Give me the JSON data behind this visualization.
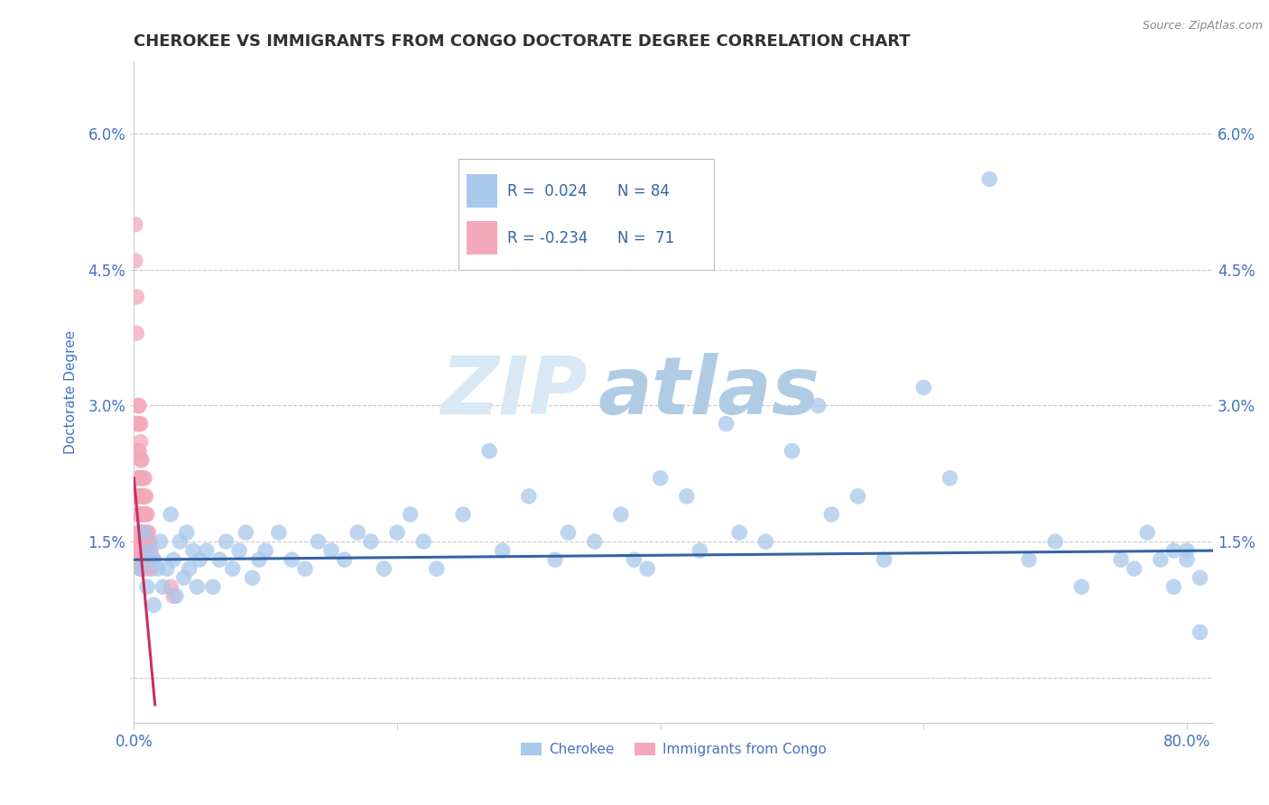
{
  "title": "CHEROKEE VS IMMIGRANTS FROM CONGO DOCTORATE DEGREE CORRELATION CHART",
  "source": "Source: ZipAtlas.com",
  "ylabel": "Doctorate Degree",
  "xlim": [
    0.0,
    0.82
  ],
  "ylim": [
    -0.005,
    0.068
  ],
  "yticks": [
    0.0,
    0.015,
    0.03,
    0.045,
    0.06
  ],
  "ytick_labels": [
    "",
    "1.5%",
    "3.0%",
    "4.5%",
    "6.0%"
  ],
  "xticks": [
    0.0,
    0.2,
    0.4,
    0.6,
    0.8
  ],
  "xtick_labels": [
    "0.0%",
    "",
    "",
    "",
    "80.0%"
  ],
  "cherokee_R": 0.024,
  "cherokee_N": 84,
  "congo_R": -0.234,
  "congo_N": 71,
  "cherokee_color": "#A8C8EC",
  "congo_color": "#F4A8BC",
  "cherokee_line_color": "#3465A4",
  "congo_line_color": "#C83060",
  "background_color": "#FFFFFF",
  "watermark_zip": "ZIP",
  "watermark_atlas": "atlas",
  "title_color": "#303030",
  "title_fontsize": 13,
  "axis_label_color": "#4472C4",
  "tick_color": "#4472C4",
  "grid_color": "#C8C8C8",
  "legend_label_cherokee": "Cherokee",
  "legend_label_congo": "Immigrants from Congo",
  "cherokee_x": [
    0.005,
    0.008,
    0.01,
    0.012,
    0.015,
    0.015,
    0.018,
    0.02,
    0.022,
    0.025,
    0.028,
    0.03,
    0.032,
    0.035,
    0.038,
    0.04,
    0.042,
    0.045,
    0.048,
    0.05,
    0.055,
    0.06,
    0.065,
    0.07,
    0.075,
    0.08,
    0.085,
    0.09,
    0.095,
    0.1,
    0.11,
    0.12,
    0.13,
    0.14,
    0.15,
    0.16,
    0.17,
    0.18,
    0.19,
    0.2,
    0.21,
    0.22,
    0.23,
    0.25,
    0.27,
    0.28,
    0.3,
    0.32,
    0.33,
    0.35,
    0.37,
    0.38,
    0.39,
    0.4,
    0.42,
    0.43,
    0.45,
    0.46,
    0.48,
    0.5,
    0.52,
    0.53,
    0.55,
    0.57,
    0.6,
    0.62,
    0.65,
    0.68,
    0.7,
    0.72,
    0.75,
    0.76,
    0.77,
    0.78,
    0.79,
    0.79,
    0.8,
    0.8,
    0.81,
    0.81
  ],
  "cherokee_y": [
    0.012,
    0.016,
    0.01,
    0.014,
    0.013,
    0.008,
    0.012,
    0.015,
    0.01,
    0.012,
    0.018,
    0.013,
    0.009,
    0.015,
    0.011,
    0.016,
    0.012,
    0.014,
    0.01,
    0.013,
    0.014,
    0.01,
    0.013,
    0.015,
    0.012,
    0.014,
    0.016,
    0.011,
    0.013,
    0.014,
    0.016,
    0.013,
    0.012,
    0.015,
    0.014,
    0.013,
    0.016,
    0.015,
    0.012,
    0.016,
    0.018,
    0.015,
    0.012,
    0.018,
    0.025,
    0.014,
    0.02,
    0.013,
    0.016,
    0.015,
    0.018,
    0.013,
    0.012,
    0.022,
    0.02,
    0.014,
    0.028,
    0.016,
    0.015,
    0.025,
    0.03,
    0.018,
    0.02,
    0.013,
    0.032,
    0.022,
    0.055,
    0.013,
    0.015,
    0.01,
    0.013,
    0.012,
    0.016,
    0.013,
    0.014,
    0.01,
    0.013,
    0.014,
    0.005,
    0.011
  ],
  "congo_x": [
    0.001,
    0.001,
    0.002,
    0.002,
    0.002,
    0.002,
    0.003,
    0.003,
    0.003,
    0.003,
    0.003,
    0.003,
    0.003,
    0.004,
    0.004,
    0.004,
    0.004,
    0.004,
    0.004,
    0.004,
    0.004,
    0.004,
    0.005,
    0.005,
    0.005,
    0.005,
    0.005,
    0.005,
    0.005,
    0.005,
    0.005,
    0.005,
    0.005,
    0.006,
    0.006,
    0.006,
    0.006,
    0.006,
    0.006,
    0.006,
    0.007,
    0.007,
    0.007,
    0.007,
    0.007,
    0.008,
    0.008,
    0.008,
    0.008,
    0.008,
    0.009,
    0.009,
    0.009,
    0.009,
    0.009,
    0.01,
    0.01,
    0.01,
    0.01,
    0.01,
    0.01,
    0.011,
    0.011,
    0.011,
    0.012,
    0.012,
    0.013,
    0.013,
    0.015,
    0.028,
    0.03
  ],
  "congo_y": [
    0.05,
    0.046,
    0.042,
    0.038,
    0.028,
    0.02,
    0.03,
    0.028,
    0.025,
    0.022,
    0.02,
    0.018,
    0.015,
    0.03,
    0.028,
    0.025,
    0.022,
    0.02,
    0.018,
    0.016,
    0.015,
    0.014,
    0.028,
    0.026,
    0.024,
    0.022,
    0.02,
    0.018,
    0.016,
    0.015,
    0.014,
    0.013,
    0.012,
    0.024,
    0.022,
    0.02,
    0.018,
    0.016,
    0.015,
    0.014,
    0.022,
    0.02,
    0.018,
    0.016,
    0.014,
    0.022,
    0.02,
    0.018,
    0.016,
    0.014,
    0.02,
    0.018,
    0.016,
    0.014,
    0.013,
    0.018,
    0.016,
    0.015,
    0.014,
    0.013,
    0.012,
    0.016,
    0.015,
    0.013,
    0.015,
    0.013,
    0.014,
    0.012,
    0.013,
    0.01,
    0.009
  ],
  "cherokee_trend": [
    0.0,
    0.82,
    0.013,
    0.014
  ],
  "congo_trend_x": [
    0.0,
    0.016
  ],
  "congo_trend_y": [
    0.022,
    -0.003
  ]
}
